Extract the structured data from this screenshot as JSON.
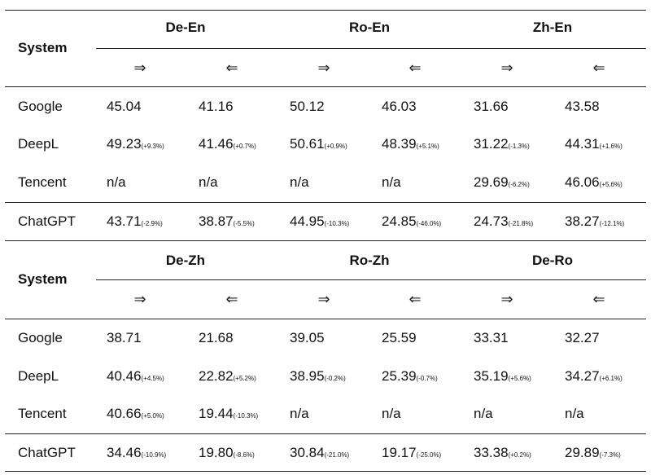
{
  "tables": [
    {
      "system_header": "System",
      "pairs": [
        "De-En",
        "Ro-En",
        "Zh-En"
      ],
      "arrows": [
        "⇒",
        "⇐",
        "⇒",
        "⇐",
        "⇒",
        "⇐"
      ],
      "rows": [
        {
          "system": "Google",
          "cells": [
            {
              "value": "45.04",
              "delta": ""
            },
            {
              "value": "41.16",
              "delta": ""
            },
            {
              "value": "50.12",
              "delta": ""
            },
            {
              "value": "46.03",
              "delta": ""
            },
            {
              "value": "31.66",
              "delta": ""
            },
            {
              "value": "43.58",
              "delta": ""
            }
          ]
        },
        {
          "system": "DeepL",
          "cells": [
            {
              "value": "49.23",
              "delta": "(+9.3%)"
            },
            {
              "value": "41.46",
              "delta": "(+0.7%)"
            },
            {
              "value": "50.61",
              "delta": "(+0.9%)"
            },
            {
              "value": "48.39",
              "delta": "(+5.1%)"
            },
            {
              "value": "31.22",
              "delta": "(-1.3%)"
            },
            {
              "value": "44.31",
              "delta": "(+1.6%)"
            }
          ]
        },
        {
          "system": "Tencent",
          "cells": [
            {
              "value": "n/a",
              "delta": ""
            },
            {
              "value": "n/a",
              "delta": ""
            },
            {
              "value": "n/a",
              "delta": ""
            },
            {
              "value": "n/a",
              "delta": ""
            },
            {
              "value": "29.69",
              "delta": "(-6.2%)"
            },
            {
              "value": "46.06",
              "delta": "(+5.6%)"
            }
          ]
        },
        {
          "system": "ChatGPT",
          "cells": [
            {
              "value": "43.71",
              "delta": "(-2.9%)"
            },
            {
              "value": "38.87",
              "delta": "(-5.5%)"
            },
            {
              "value": "44.95",
              "delta": "(-10.3%)"
            },
            {
              "value": "24.85",
              "delta": "(-46.0%)"
            },
            {
              "value": "24.73",
              "delta": "(-21.8%)"
            },
            {
              "value": "38.27",
              "delta": "(-12.1%)"
            }
          ]
        }
      ]
    },
    {
      "system_header": "System",
      "pairs": [
        "De-Zh",
        "Ro-Zh",
        "De-Ro"
      ],
      "arrows": [
        "⇒",
        "⇐",
        "⇒",
        "⇐",
        "⇒",
        "⇐"
      ],
      "rows": [
        {
          "system": "Google",
          "cells": [
            {
              "value": "38.71",
              "delta": ""
            },
            {
              "value": "21.68",
              "delta": ""
            },
            {
              "value": "39.05",
              "delta": ""
            },
            {
              "value": "25.59",
              "delta": ""
            },
            {
              "value": "33.31",
              "delta": ""
            },
            {
              "value": "32.27",
              "delta": ""
            }
          ]
        },
        {
          "system": "DeepL",
          "cells": [
            {
              "value": "40.46",
              "delta": "(+4.5%)"
            },
            {
              "value": "22.82",
              "delta": "(+5.2%)"
            },
            {
              "value": "38.95",
              "delta": "(-0.2%)"
            },
            {
              "value": "25.39",
              "delta": "(-0.7%)"
            },
            {
              "value": "35.19",
              "delta": "(+5.6%)"
            },
            {
              "value": "34.27",
              "delta": "(+6.1%)"
            }
          ]
        },
        {
          "system": "Tencent",
          "cells": [
            {
              "value": "40.66",
              "delta": "(+5.0%)"
            },
            {
              "value": "19.44",
              "delta": "(-10.3%)"
            },
            {
              "value": "n/a",
              "delta": ""
            },
            {
              "value": "n/a",
              "delta": ""
            },
            {
              "value": "n/a",
              "delta": ""
            },
            {
              "value": "n/a",
              "delta": ""
            }
          ]
        },
        {
          "system": "ChatGPT",
          "cells": [
            {
              "value": "34.46",
              "delta": "(-10.9%)"
            },
            {
              "value": "19.80",
              "delta": "(-8.6%)"
            },
            {
              "value": "30.84",
              "delta": "(-21.0%)"
            },
            {
              "value": "19.17",
              "delta": "(-25.0%)"
            },
            {
              "value": "33.38",
              "delta": "(+0.2%)"
            },
            {
              "value": "29.89",
              "delta": "(-7.3%)"
            }
          ]
        }
      ]
    }
  ]
}
